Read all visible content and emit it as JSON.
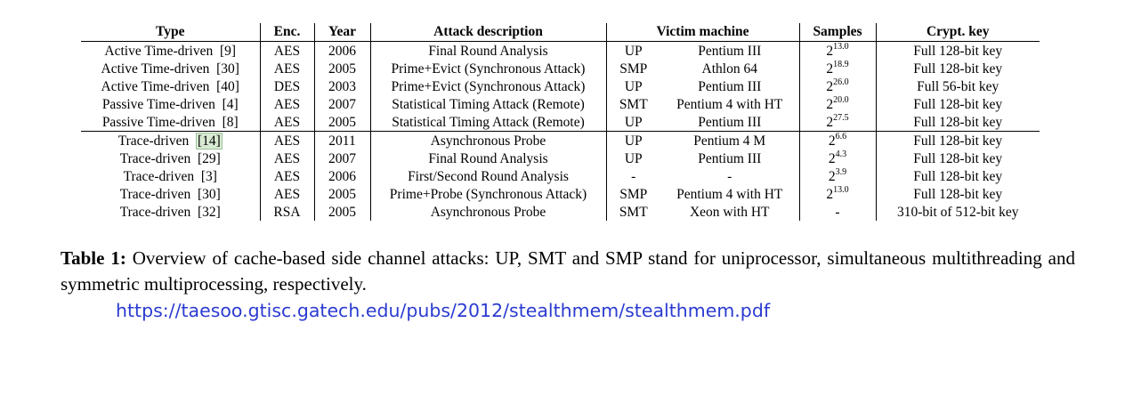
{
  "table": {
    "headers": [
      "Type",
      "Enc.",
      "Year",
      "Attack description",
      "Victim machine",
      "Samples",
      "Crypt. key"
    ],
    "rows": [
      {
        "type": "Active Time-driven",
        "cite": "[9]",
        "enc": "AES",
        "year": "2006",
        "attack": "Final Round Analysis",
        "proc": "UP",
        "machine": "Pentium III",
        "samples_base": "2",
        "samples_exp": "13.0",
        "key": "Full 128-bit key"
      },
      {
        "type": "Active Time-driven",
        "cite": "[30]",
        "enc": "AES",
        "year": "2005",
        "attack": "Prime+Evict (Synchronous Attack)",
        "proc": "SMP",
        "machine": "Athlon 64",
        "samples_base": "2",
        "samples_exp": "18.9",
        "key": "Full 128-bit key"
      },
      {
        "type": "Active Time-driven",
        "cite": "[40]",
        "enc": "DES",
        "year": "2003",
        "attack": "Prime+Evict (Synchronous Attack)",
        "proc": "UP",
        "machine": "Pentium III",
        "samples_base": "2",
        "samples_exp": "26.0",
        "key": "Full 56-bit key"
      },
      {
        "type": "Passive Time-driven",
        "cite": "[4]",
        "enc": "AES",
        "year": "2007",
        "attack": "Statistical Timing Attack (Remote)",
        "proc": "SMT",
        "machine": "Pentium 4 with HT",
        "samples_base": "2",
        "samples_exp": "20.0",
        "key": "Full 128-bit key"
      },
      {
        "type": "Passive Time-driven",
        "cite": "[8]",
        "enc": "AES",
        "year": "2005",
        "attack": "Statistical Timing Attack (Remote)",
        "proc": "UP",
        "machine": "Pentium III",
        "samples_base": "2",
        "samples_exp": "27.5",
        "key": "Full 128-bit key"
      },
      {
        "type": "Trace-driven",
        "cite": "[14]",
        "enc": "AES",
        "year": "2011",
        "attack": "Asynchronous Probe",
        "proc": "UP",
        "machine": "Pentium 4 M",
        "samples_base": "2",
        "samples_exp": "6.6",
        "key": "Full 128-bit key"
      },
      {
        "type": "Trace-driven",
        "cite": "[29]",
        "enc": "AES",
        "year": "2007",
        "attack": "Final Round Analysis",
        "proc": "UP",
        "machine": "Pentium III",
        "samples_base": "2",
        "samples_exp": "4.3",
        "key": "Full 128-bit key"
      },
      {
        "type": "Trace-driven",
        "cite": "[3]",
        "enc": "AES",
        "year": "2006",
        "attack": "First/Second Round Analysis",
        "proc": "-",
        "machine": "-",
        "samples_base": "2",
        "samples_exp": "3.9",
        "key": "Full 128-bit key"
      },
      {
        "type": "Trace-driven",
        "cite": "[30]",
        "enc": "AES",
        "year": "2005",
        "attack": "Prime+Probe (Synchronous Attack)",
        "proc": "SMP",
        "machine": "Pentium 4 with HT",
        "samples_base": "2",
        "samples_exp": "13.0",
        "key": "Full 128-bit key"
      },
      {
        "type": "Trace-driven",
        "cite": "[32]",
        "enc": "RSA",
        "year": "2005",
        "attack": "Asynchronous Probe",
        "proc": "SMT",
        "machine": "Xeon with HT",
        "samples_base": "-",
        "samples_exp": "",
        "key": "310-bit of 512-bit key"
      }
    ]
  },
  "caption": {
    "label": "Table 1:",
    "text": "Overview of cache-based side channel attacks: UP, SMT and SMP stand for uniprocessor, simultaneous multithreading and symmetric multiprocessing, respectively."
  },
  "source_url": "https://taesoo.gtisc.gatech.edu/pubs/2012/stealthmem/stealthmem.pdf"
}
